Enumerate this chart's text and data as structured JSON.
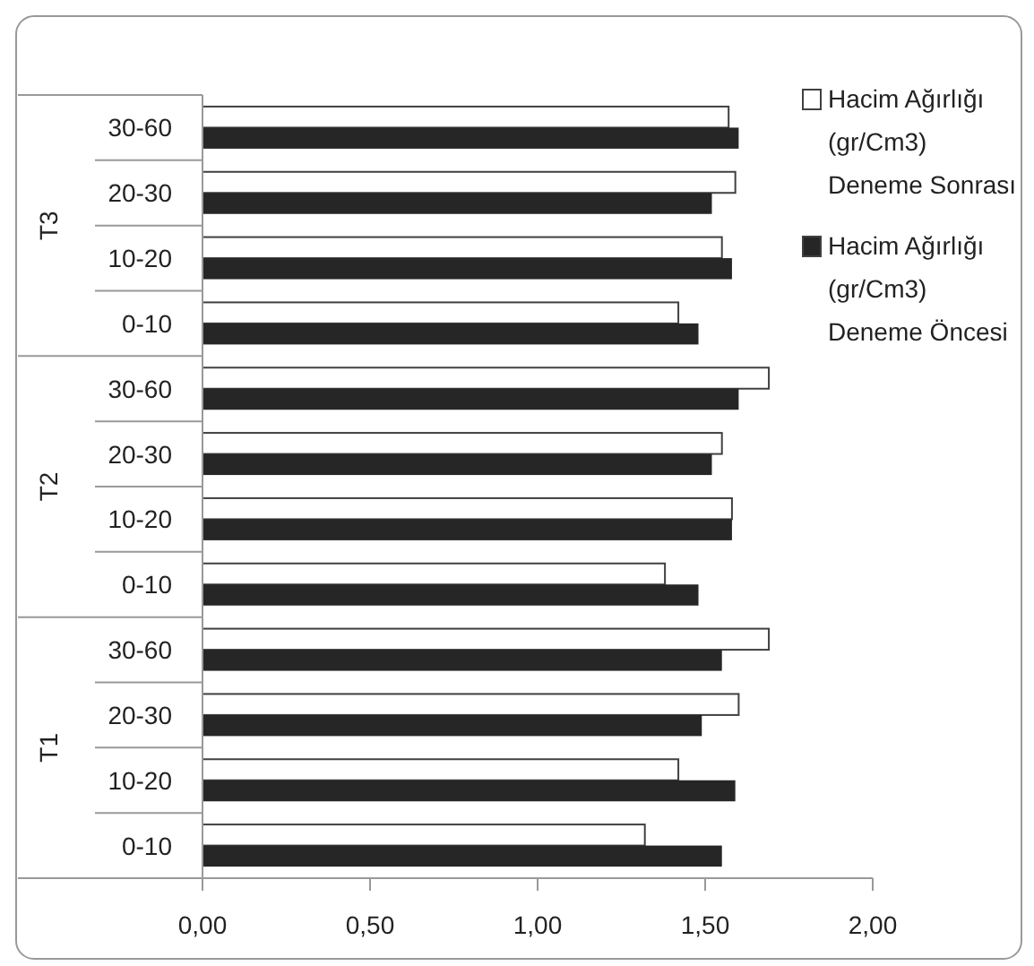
{
  "chart_data": {
    "type": "bar",
    "orientation": "horizontal",
    "categories": [
      "30-60",
      "20-30",
      "10-20",
      "0-10",
      "30-60",
      "20-30",
      "10-20",
      "0-10",
      "30-60",
      "20-30",
      "10-20",
      "0-10"
    ],
    "annotations": [
      "T3",
      "T2",
      "T1"
    ],
    "series": [
      {
        "name": "Hacim Ağırlığı (gr/Cm3) Deneme Sonrası",
        "color": "#ffffff",
        "values": [
          1.57,
          1.59,
          1.55,
          1.42,
          1.69,
          1.55,
          1.58,
          1.38,
          1.69,
          1.6,
          1.42,
          1.32
        ]
      },
      {
        "name": "Hacim Ağırlığı (gr/Cm3) Deneme Öncesi",
        "color": "#262626",
        "values": [
          1.6,
          1.52,
          1.58,
          1.48,
          1.6,
          1.52,
          1.58,
          1.48,
          1.55,
          1.49,
          1.59,
          1.55
        ]
      }
    ],
    "xlim": [
      0,
      2
    ],
    "xticks": [
      {
        "value": 0,
        "label": "0,00"
      },
      {
        "value": 0.5,
        "label": "0,50"
      },
      {
        "value": 1,
        "label": "1,00"
      },
      {
        "value": 1.5,
        "label": "1,50"
      },
      {
        "value": 2,
        "label": "2,00"
      }
    ],
    "legend": "right",
    "grid": false
  }
}
